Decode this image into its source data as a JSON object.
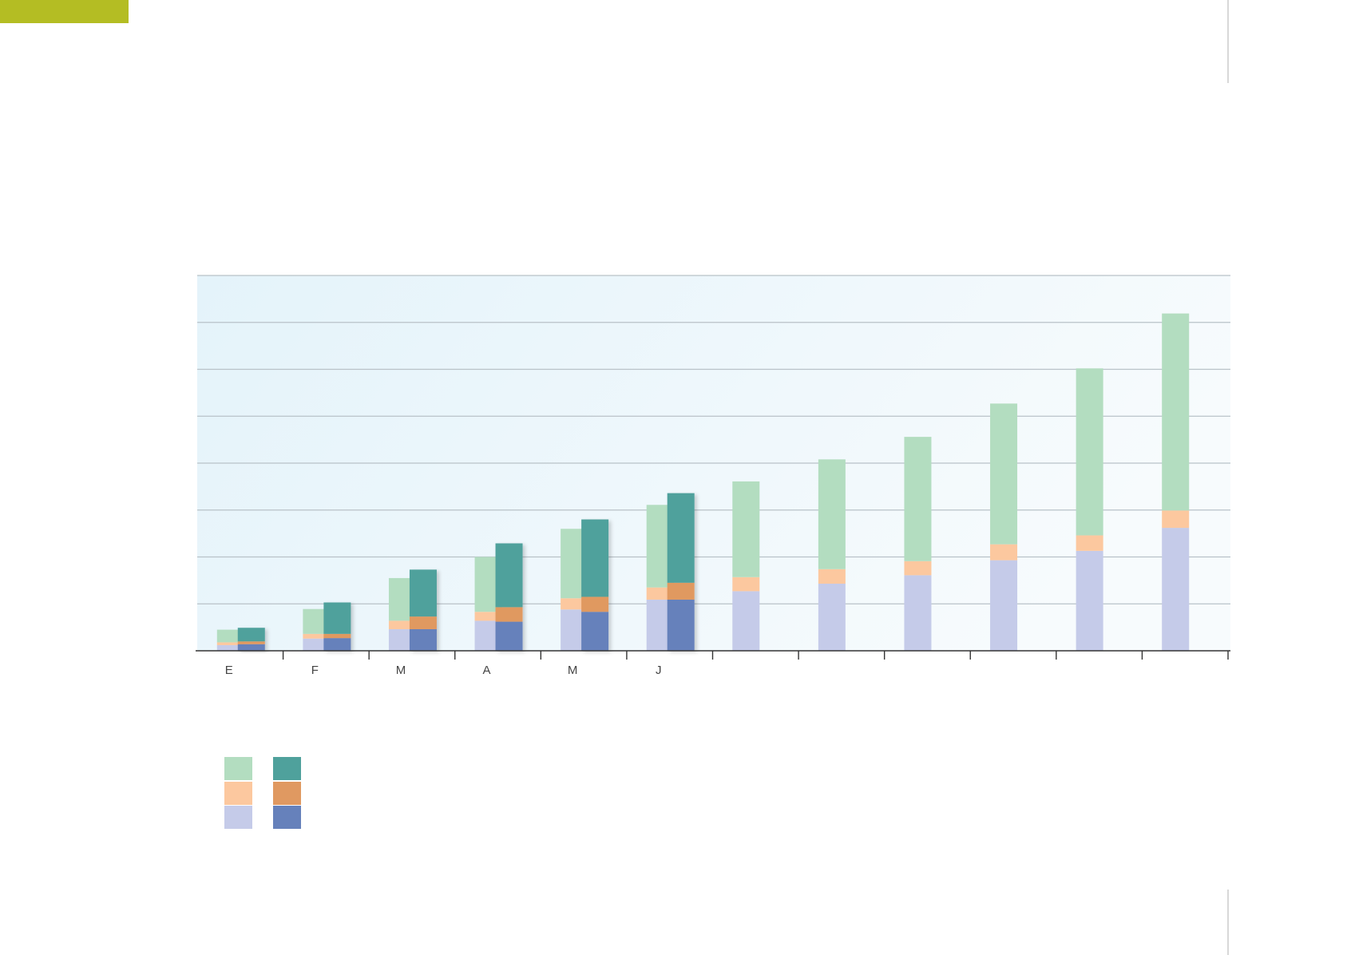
{
  "colors": {
    "accent_tab": "#b4bd23",
    "grid": "#b9c2c8",
    "axis": "#333333",
    "plot_bg_left": "#e4f3fa",
    "plot_bg_right": "#f7fbfd"
  },
  "chart_data": {
    "type": "bar",
    "stacked": true,
    "grouped": true,
    "title": "",
    "xlabel": "",
    "ylabel": "",
    "ylim": [
      0,
      80
    ],
    "grid": true,
    "legend_position": "bottom-left",
    "categories": [
      "E",
      "F",
      "M",
      "A",
      "M",
      "J",
      "",
      "",
      "",
      "",
      "",
      ""
    ],
    "groups": [
      {
        "name": "",
        "shade": "light",
        "series": [
          {
            "name": "",
            "color": "#c5cbe9",
            "values": [
              1.2,
              2.6,
              4.6,
              6.4,
              8.8,
              10.9,
              12.7,
              14.3,
              16.1,
              19.3,
              21.3,
              26.2
            ]
          },
          {
            "name": "",
            "color": "#fcc89f",
            "values": [
              0.6,
              1.0,
              1.8,
              1.9,
              2.4,
              2.6,
              3.0,
              3.1,
              3.0,
              3.4,
              3.3,
              3.7
            ]
          },
          {
            "name": "",
            "color": "#b3ddc0",
            "values": [
              2.7,
              5.3,
              9.1,
              11.7,
              14.8,
              17.6,
              20.4,
              23.4,
              26.5,
              30.0,
              35.6,
              42.0
            ]
          }
        ]
      },
      {
        "name": "",
        "shade": "dark",
        "series": [
          {
            "name": "",
            "color": "#6681bb",
            "values": [
              1.4,
              2.7,
              4.6,
              6.2,
              8.3,
              10.9,
              null,
              null,
              null,
              null,
              null,
              null
            ]
          },
          {
            "name": "",
            "color": "#e09961",
            "values": [
              0.6,
              0.9,
              2.7,
              3.1,
              3.2,
              3.6,
              null,
              null,
              null,
              null,
              null,
              null
            ]
          },
          {
            "name": "",
            "color": "#4fa19c",
            "values": [
              2.9,
              6.7,
              10.0,
              13.6,
              16.5,
              19.1,
              null,
              null,
              null,
              null,
              null,
              null
            ]
          }
        ]
      }
    ]
  }
}
